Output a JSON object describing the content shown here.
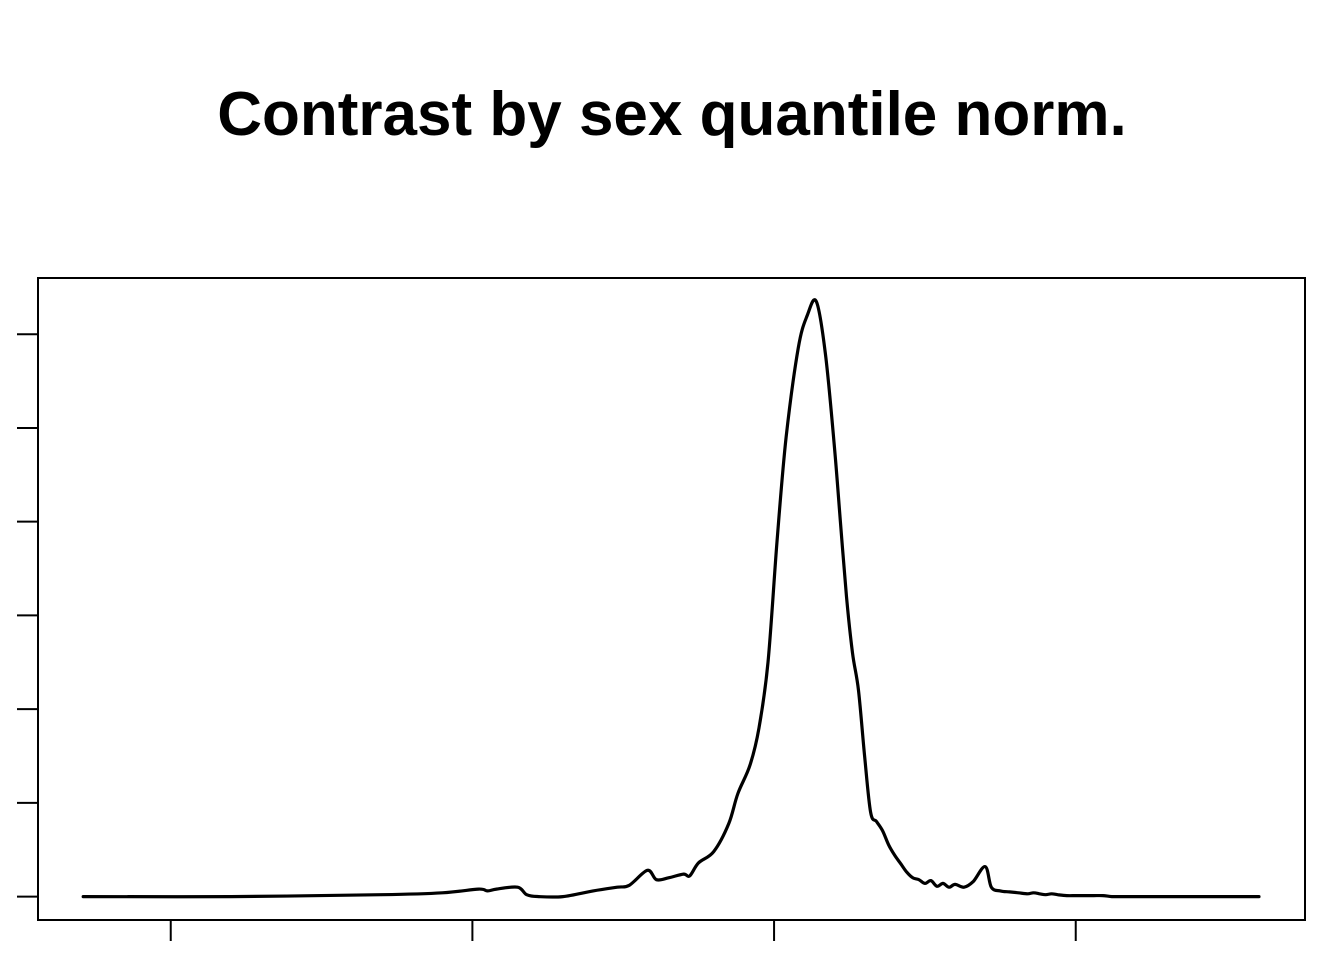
{
  "chart_data": {
    "type": "line",
    "title": "Contrast by sex quantile norm.",
    "xlabel": "",
    "ylabel": "",
    "x_ticks": [
      -3,
      -2,
      -1,
      0,
      1
    ],
    "y_ticks": [
      0,
      1,
      2,
      3,
      4,
      5,
      6
    ],
    "tick_labels_shown": false,
    "xlim": [
      -3.44,
      0.76
    ],
    "ylim": [
      -0.25,
      6.6
    ],
    "grid": false,
    "line_color": "#000000",
    "series": [
      {
        "x": [
          -3.29,
          -2.8,
          -2.3,
          -2.1,
          -1.98,
          -1.95,
          -1.92,
          -1.85,
          -1.82,
          -1.78,
          -1.7,
          -1.6,
          -1.52,
          -1.48,
          -1.42,
          -1.39,
          -1.35,
          -1.3,
          -1.28,
          -1.25,
          -1.2,
          -1.15,
          -1.12,
          -1.08,
          -1.05,
          -1.02,
          -0.99,
          -0.96,
          -0.92,
          -0.89,
          -0.86,
          -0.83,
          -0.8,
          -0.78,
          -0.76,
          -0.74,
          -0.72,
          -0.7,
          -0.68,
          -0.66,
          -0.64,
          -0.62,
          -0.6,
          -0.58,
          -0.56,
          -0.54,
          -0.52,
          -0.5,
          -0.48,
          -0.46,
          -0.44,
          -0.42,
          -0.4,
          -0.37,
          -0.34,
          -0.3,
          -0.28,
          -0.25,
          -0.22,
          -0.19,
          -0.16,
          -0.14,
          -0.12,
          -0.1,
          -0.08,
          -0.06,
          -0.03,
          0.0,
          0.03,
          0.06,
          0.09,
          0.12,
          0.15,
          0.2,
          0.25,
          0.3,
          0.4,
          0.5,
          0.6,
          0.6
        ],
        "y": [
          0,
          0,
          0.02,
          0.04,
          0.08,
          0.06,
          0.08,
          0.1,
          0.02,
          0.0,
          0.0,
          0.06,
          0.1,
          0.12,
          0.28,
          0.18,
          0.2,
          0.24,
          0.22,
          0.36,
          0.48,
          0.78,
          1.1,
          1.4,
          1.8,
          2.5,
          3.8,
          4.9,
          5.85,
          6.2,
          6.35,
          5.8,
          4.8,
          4.0,
          3.2,
          2.6,
          2.2,
          1.5,
          0.9,
          0.8,
          0.7,
          0.55,
          0.44,
          0.35,
          0.26,
          0.2,
          0.18,
          0.14,
          0.17,
          0.11,
          0.14,
          0.1,
          0.13,
          0.1,
          0.16,
          0.32,
          0.1,
          0.06,
          0.05,
          0.04,
          0.03,
          0.04,
          0.03,
          0.02,
          0.03,
          0.02,
          0.01,
          0.01,
          0.01,
          0.01,
          0.01,
          0.0,
          0.0,
          0.0,
          0.0,
          0.0,
          0.0,
          0.0,
          0.0,
          0.0
        ]
      }
    ]
  }
}
